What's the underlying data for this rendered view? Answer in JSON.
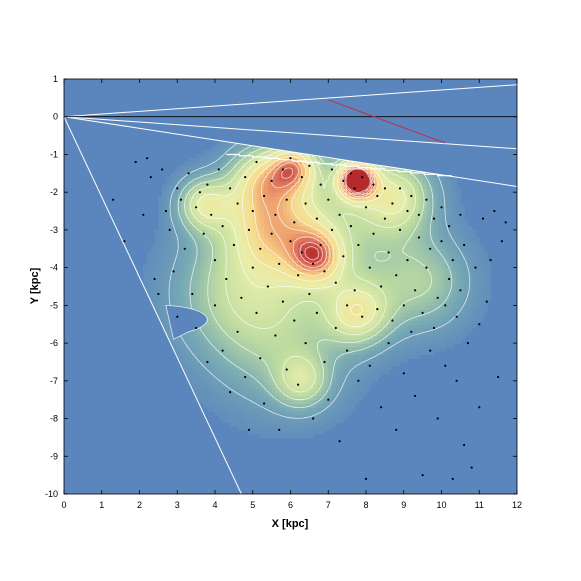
{
  "chart_data": {
    "type": "heatmap",
    "title": "",
    "xlabel": "X [kpc]",
    "ylabel": "Y [kpc]",
    "xlim": [
      0,
      12
    ],
    "ylim": [
      -10,
      1
    ],
    "xticks": [
      0,
      1,
      2,
      3,
      4,
      5,
      6,
      7,
      8,
      9,
      10,
      11,
      12
    ],
    "yticks": [
      1,
      0,
      -1,
      -2,
      -3,
      -4,
      -5,
      -6,
      -7,
      -8,
      -9,
      -10
    ],
    "grid": false,
    "colors": {
      "background": "#5b86bd",
      "low": "#5b86bd",
      "mid": "#d9e3a3",
      "high": "#b52a2a",
      "contour": "#ffffff",
      "points": "#000000",
      "zero_line": "#000000",
      "sightline": "#c0304a"
    },
    "density_peaks": [
      {
        "x": 7.75,
        "y": -1.65,
        "amplitude": 1.0,
        "sigma": 0.35
      },
      {
        "x": 6.1,
        "y": -1.3,
        "amplitude": 0.55,
        "sigma": 0.45
      },
      {
        "x": 5.2,
        "y": -1.6,
        "amplitude": 0.4,
        "sigma": 0.6
      },
      {
        "x": 8.8,
        "y": -2.1,
        "amplitude": 0.45,
        "sigma": 0.7
      },
      {
        "x": 3.7,
        "y": -2.3,
        "amplitude": 0.45,
        "sigma": 0.5
      },
      {
        "x": 5.5,
        "y": -2.8,
        "amplitude": 0.5,
        "sigma": 0.9
      },
      {
        "x": 6.7,
        "y": -3.7,
        "amplitude": 0.5,
        "sigma": 0.5
      },
      {
        "x": 7.8,
        "y": -5.2,
        "amplitude": 0.45,
        "sigma": 0.6
      },
      {
        "x": 4.5,
        "y": -4.6,
        "amplitude": 0.3,
        "sigma": 1.2
      },
      {
        "x": 9.5,
        "y": -4.4,
        "amplitude": 0.3,
        "sigma": 0.9
      },
      {
        "x": 6.3,
        "y": -7.0,
        "amplitude": 0.32,
        "sigma": 0.5
      },
      {
        "x": 5.8,
        "y": -6.0,
        "amplitude": 0.25,
        "sigma": 1.3
      },
      {
        "x": 7.0,
        "y": -3.0,
        "amplitude": 0.3,
        "sigma": 1.4
      }
    ],
    "sources": [
      [
        1.3,
        -2.2
      ],
      [
        1.6,
        -3.3
      ],
      [
        1.9,
        -1.2
      ],
      [
        2.1,
        -2.6
      ],
      [
        2.2,
        -1.1
      ],
      [
        2.4,
        -4.3
      ],
      [
        2.5,
        -4.7
      ],
      [
        2.3,
        -1.6
      ],
      [
        2.6,
        -1.4
      ],
      [
        2.7,
        -2.5
      ],
      [
        2.8,
        -3.0
      ],
      [
        2.9,
        -4.1
      ],
      [
        3.0,
        -1.9
      ],
      [
        3.0,
        -5.3
      ],
      [
        3.1,
        -2.2
      ],
      [
        3.2,
        -3.5
      ],
      [
        3.3,
        -1.5
      ],
      [
        3.4,
        -4.7
      ],
      [
        3.5,
        -2.4
      ],
      [
        3.5,
        -5.6
      ],
      [
        3.6,
        -2.0
      ],
      [
        3.7,
        -3.1
      ],
      [
        3.8,
        -1.8
      ],
      [
        3.8,
        -6.5
      ],
      [
        3.9,
        -2.6
      ],
      [
        4.0,
        -3.8
      ],
      [
        4.0,
        -5.0
      ],
      [
        4.1,
        -1.4
      ],
      [
        4.2,
        -2.9
      ],
      [
        4.2,
        -6.2
      ],
      [
        4.3,
        -4.3
      ],
      [
        4.4,
        -1.9
      ],
      [
        4.4,
        -7.3
      ],
      [
        4.5,
        -3.4
      ],
      [
        4.6,
        -2.3
      ],
      [
        4.6,
        -5.7
      ],
      [
        4.7,
        -4.8
      ],
      [
        4.8,
        -1.6
      ],
      [
        4.8,
        -6.9
      ],
      [
        4.9,
        -3.0
      ],
      [
        4.9,
        -8.3
      ],
      [
        5.0,
        -2.5
      ],
      [
        5.0,
        -4.0
      ],
      [
        5.1,
        -5.2
      ],
      [
        5.1,
        -1.2
      ],
      [
        5.2,
        -3.5
      ],
      [
        5.2,
        -6.4
      ],
      [
        5.3,
        -2.1
      ],
      [
        5.3,
        -7.6
      ],
      [
        5.4,
        -4.5
      ],
      [
        5.5,
        -3.1
      ],
      [
        5.5,
        -1.7
      ],
      [
        5.6,
        -5.8
      ],
      [
        5.6,
        -2.6
      ],
      [
        5.7,
        -8.3
      ],
      [
        5.7,
        -3.9
      ],
      [
        5.8,
        -1.4
      ],
      [
        5.8,
        -4.9
      ],
      [
        5.9,
        -2.2
      ],
      [
        5.9,
        -6.7
      ],
      [
        6.0,
        -3.3
      ],
      [
        6.0,
        -1.1
      ],
      [
        6.1,
        -5.4
      ],
      [
        6.1,
        -2.8
      ],
      [
        6.2,
        -4.2
      ],
      [
        6.2,
        -7.1
      ],
      [
        6.3,
        -1.6
      ],
      [
        6.3,
        -3.6
      ],
      [
        6.4,
        -2.3
      ],
      [
        6.4,
        -6.0
      ],
      [
        6.5,
        -4.7
      ],
      [
        6.5,
        -1.3
      ],
      [
        6.6,
        -3.9
      ],
      [
        6.6,
        -8.0
      ],
      [
        6.7,
        -2.7
      ],
      [
        6.7,
        -5.2
      ],
      [
        6.8,
        -3.4
      ],
      [
        6.8,
        -1.8
      ],
      [
        6.9,
        -6.5
      ],
      [
        6.9,
        -4.1
      ],
      [
        7.0,
        -2.2
      ],
      [
        7.0,
        -7.5
      ],
      [
        7.1,
        -3.0
      ],
      [
        7.1,
        -1.4
      ],
      [
        7.2,
        -5.6
      ],
      [
        7.2,
        -4.4
      ],
      [
        7.3,
        -2.6
      ],
      [
        7.3,
        -8.6
      ],
      [
        7.4,
        -1.7
      ],
      [
        7.4,
        -3.7
      ],
      [
        7.5,
        -6.2
      ],
      [
        7.5,
        -5.0
      ],
      [
        7.6,
        -1.5
      ],
      [
        7.6,
        -2.9
      ],
      [
        7.7,
        -4.6
      ],
      [
        7.7,
        -1.9
      ],
      [
        7.8,
        -7.0
      ],
      [
        7.8,
        -3.4
      ],
      [
        7.9,
        -5.3
      ],
      [
        7.9,
        -1.6
      ],
      [
        8.0,
        -2.4
      ],
      [
        8.0,
        -9.6
      ],
      [
        8.1,
        -4.0
      ],
      [
        8.1,
        -6.6
      ],
      [
        8.2,
        -1.8
      ],
      [
        8.2,
        -3.1
      ],
      [
        8.3,
        -5.1
      ],
      [
        8.3,
        -2.1
      ],
      [
        8.4,
        -7.7
      ],
      [
        8.4,
        -4.5
      ],
      [
        8.5,
        -2.7
      ],
      [
        8.5,
        -1.9
      ],
      [
        8.6,
        -6.0
      ],
      [
        8.6,
        -3.6
      ],
      [
        8.7,
        -5.4
      ],
      [
        8.7,
        -2.3
      ],
      [
        8.8,
        -4.2
      ],
      [
        8.8,
        -8.3
      ],
      [
        8.9,
        -3.0
      ],
      [
        8.9,
        -1.9
      ],
      [
        9.0,
        -6.8
      ],
      [
        9.0,
        -5.0
      ],
      [
        9.1,
        -2.5
      ],
      [
        9.1,
        -3.8
      ],
      [
        9.2,
        -5.7
      ],
      [
        9.2,
        -2.1
      ],
      [
        9.3,
        -4.6
      ],
      [
        9.3,
        -7.4
      ],
      [
        9.4,
        -3.2
      ],
      [
        9.4,
        -2.6
      ],
      [
        9.5,
        -5.2
      ],
      [
        9.5,
        -9.5
      ],
      [
        9.6,
        -2.2
      ],
      [
        9.6,
        -4.0
      ],
      [
        9.7,
        -6.2
      ],
      [
        9.7,
        -3.5
      ],
      [
        9.8,
        -2.7
      ],
      [
        9.8,
        -5.6
      ],
      [
        9.9,
        -4.8
      ],
      [
        9.9,
        -8.0
      ],
      [
        10.0,
        -2.4
      ],
      [
        10.0,
        -3.3
      ],
      [
        10.1,
        -6.6
      ],
      [
        10.1,
        -5.0
      ],
      [
        10.2,
        -2.9
      ],
      [
        10.2,
        -4.3
      ],
      [
        10.3,
        -3.8
      ],
      [
        10.3,
        -9.6
      ],
      [
        10.4,
        -5.3
      ],
      [
        10.4,
        -7.0
      ],
      [
        10.5,
        -2.6
      ],
      [
        10.5,
        -4.6
      ],
      [
        10.6,
        -3.4
      ],
      [
        10.6,
        -8.7
      ],
      [
        10.7,
        -6.0
      ],
      [
        10.8,
        -9.3
      ],
      [
        10.9,
        -4.0
      ],
      [
        11.0,
        -5.5
      ],
      [
        11.1,
        -2.7
      ],
      [
        11.2,
        -4.9
      ],
      [
        11.3,
        -3.8
      ],
      [
        11.4,
        -2.5
      ],
      [
        11.5,
        -6.9
      ],
      [
        11.6,
        -3.3
      ],
      [
        11.7,
        -2.8
      ],
      [
        11.0,
        -7.7
      ]
    ]
  }
}
